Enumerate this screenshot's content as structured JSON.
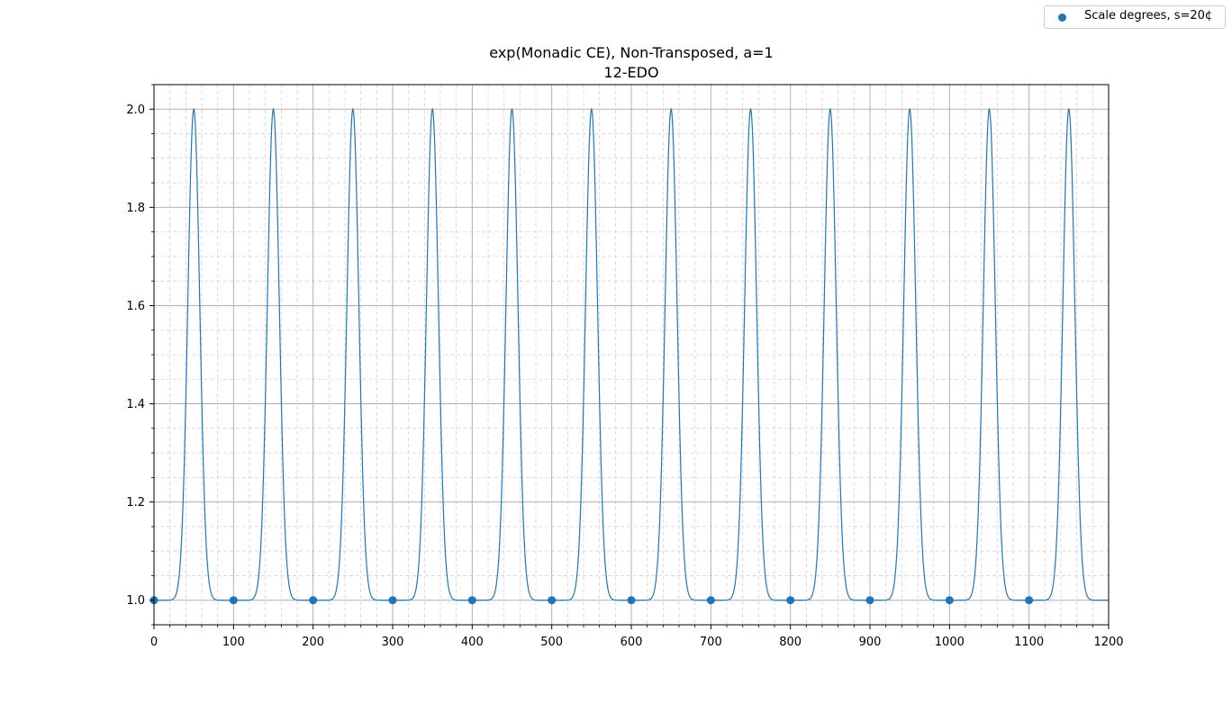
{
  "chart_data": {
    "type": "line",
    "title": "exp(Monadic CE), Non-Transposed, a=1",
    "subtitle": "12-EDO",
    "xlabel": "",
    "ylabel": "",
    "xlim": [
      0,
      1200
    ],
    "ylim": [
      0.95,
      2.05
    ],
    "grid": true,
    "minor_grid": true,
    "legend_position": "top-right outside",
    "x_ticks": [
      "0",
      "100",
      "200",
      "300",
      "400",
      "500",
      "600",
      "700",
      "800",
      "900",
      "1000",
      "1100",
      "1200"
    ],
    "y_ticks": [
      "1.0",
      "1.2",
      "1.4",
      "1.6",
      "1.8",
      "2.0"
    ],
    "line_series": {
      "color": "#1f77b4",
      "peak_x": [
        50,
        150,
        250,
        350,
        450,
        550,
        650,
        750,
        850,
        950,
        1050,
        1150
      ],
      "peak_y": 2.0,
      "baseline_y": 1.0,
      "period": 100
    },
    "series": [
      {
        "name": "Scale degrees, s=20¢",
        "type": "scatter",
        "color": "#1f77b4",
        "x": [
          0,
          100,
          200,
          300,
          400,
          500,
          600,
          700,
          800,
          900,
          1000,
          1100
        ],
        "y": [
          1.0,
          1.0,
          1.0,
          1.0,
          1.0,
          1.0,
          1.0,
          1.0,
          1.0,
          1.0,
          1.0,
          1.0
        ]
      }
    ]
  }
}
